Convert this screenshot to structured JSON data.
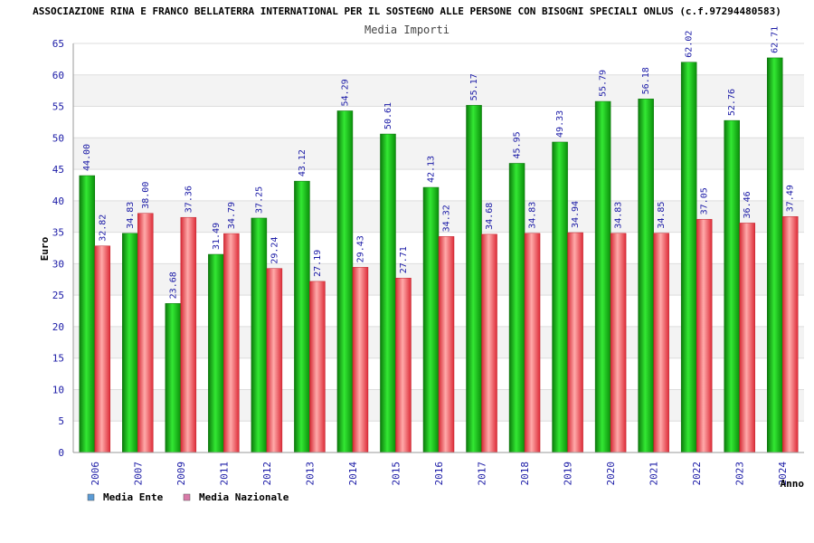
{
  "chart_data": {
    "type": "bar",
    "title": "ASSOCIAZIONE RINA E FRANCO BELLATERRA INTERNATIONAL PER IL SOSTEGNO ALLE PERSONE CON BISOGNI SPECIALI ONLUS (c.f.97294480583)",
    "subtitle": "Media Importi",
    "xlabel": "Anno",
    "ylabel": "Euro",
    "ylim": [
      0,
      65
    ],
    "yticks": [
      0,
      5,
      10,
      15,
      20,
      25,
      30,
      35,
      40,
      45,
      50,
      55,
      60,
      65
    ],
    "categories": [
      "2006",
      "2007",
      "2009",
      "2011",
      "2012",
      "2013",
      "2014",
      "2015",
      "2016",
      "2017",
      "2018",
      "2019",
      "2020",
      "2021",
      "2022",
      "2023",
      "2024"
    ],
    "series": [
      {
        "name": "Media Ente",
        "color": "#1fae1f",
        "values": [
          44.0,
          34.83,
          23.68,
          31.49,
          37.25,
          43.12,
          54.29,
          50.61,
          42.13,
          55.17,
          45.95,
          49.33,
          55.79,
          56.18,
          62.02,
          52.76,
          62.71
        ],
        "labels": [
          "44.00",
          "34.83",
          "23.68",
          "31.49",
          "37.25",
          "43.12",
          "54.29",
          "50.61",
          "42.13",
          "55.17",
          "45.95",
          "49.33",
          "55.79",
          "56.18",
          "62.02",
          "52.76",
          "62.71"
        ]
      },
      {
        "name": "Media Nazionale",
        "color": "#e8505b",
        "values": [
          32.82,
          38.0,
          37.36,
          34.79,
          29.24,
          27.19,
          29.43,
          27.71,
          34.32,
          34.68,
          34.83,
          34.94,
          34.83,
          34.85,
          37.05,
          36.46,
          37.49
        ],
        "labels": [
          "32.82",
          "38.00",
          "37.36",
          "34.79",
          "29.24",
          "27.19",
          "29.43",
          "27.71",
          "34.32",
          "34.68",
          "34.83",
          "34.94",
          "34.83",
          "34.85",
          "37.05",
          "36.46",
          "37.49"
        ]
      }
    ],
    "legend": [
      {
        "label": "Media Ente",
        "swatch": "#5b9bd5"
      },
      {
        "label": "Media Nazionale",
        "swatch": "#d97aa8"
      }
    ],
    "grid": true,
    "legend_position": "bottom-left"
  }
}
